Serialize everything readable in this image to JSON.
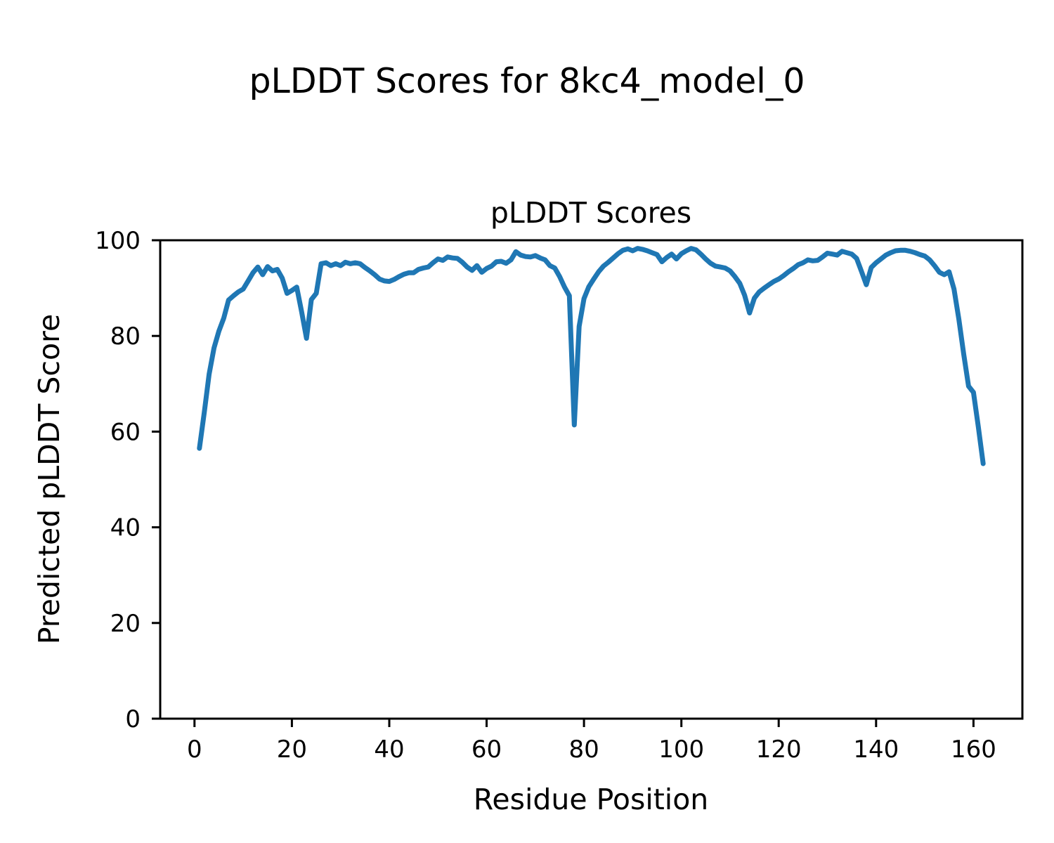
{
  "chart_data": {
    "type": "line",
    "title": "pLDDT Scores for 8kc4_model_0",
    "axes_title": "pLDDT Scores",
    "xlabel": "Residue Position",
    "ylabel": "Predicted pLDDT Score",
    "series_name": "pLDDT",
    "x_start": 1,
    "x_step": 1,
    "xlim": [
      -7.05,
      170.05
    ],
    "ylim": [
      0,
      100
    ],
    "xticks": [
      0,
      20,
      40,
      60,
      80,
      100,
      120,
      140,
      160
    ],
    "yticks": [
      0,
      20,
      40,
      60,
      80,
      100
    ],
    "grid": false,
    "legend": false,
    "line_color": "#1f77b4",
    "line_width": 7,
    "values": [
      56.5,
      64.0,
      72.0,
      77.5,
      81.0,
      83.7,
      87.5,
      88.4,
      89.2,
      89.8,
      91.5,
      93.2,
      94.4,
      92.8,
      94.5,
      93.6,
      93.9,
      92.1,
      88.9,
      89.5,
      90.2,
      85.0,
      79.5,
      87.6,
      88.9,
      95.1,
      95.3,
      94.7,
      95.1,
      94.7,
      95.4,
      95.1,
      95.3,
      95.1,
      94.3,
      93.6,
      92.8,
      91.9,
      91.5,
      91.4,
      91.8,
      92.4,
      92.9,
      93.2,
      93.2,
      93.9,
      94.2,
      94.4,
      95.3,
      96.1,
      95.8,
      96.5,
      96.3,
      96.2,
      95.4,
      94.4,
      93.7,
      94.7,
      93.3,
      94.1,
      94.6,
      95.5,
      95.6,
      95.2,
      95.9,
      97.6,
      96.9,
      96.6,
      96.5,
      96.8,
      96.3,
      95.9,
      94.7,
      94.2,
      92.4,
      90.2,
      88.4,
      61.4,
      82.0,
      87.8,
      90.3,
      91.9,
      93.4,
      94.6,
      95.4,
      96.3,
      97.2,
      97.9,
      98.2,
      97.8,
      98.3,
      98.1,
      97.8,
      97.4,
      97.0,
      95.5,
      96.4,
      97.1,
      96.1,
      97.2,
      97.8,
      98.3,
      98.0,
      97.1,
      96.1,
      95.2,
      94.6,
      94.4,
      94.2,
      93.6,
      92.4,
      91.0,
      88.5,
      84.8,
      87.9,
      89.2,
      90.0,
      90.7,
      91.4,
      91.9,
      92.6,
      93.4,
      94.1,
      94.9,
      95.3,
      95.9,
      95.7,
      95.8,
      96.5,
      97.3,
      97.1,
      96.9,
      97.7,
      97.4,
      97.1,
      96.2,
      93.5,
      90.7,
      94.3,
      95.3,
      96.1,
      96.9,
      97.4,
      97.8,
      97.9,
      97.9,
      97.7,
      97.4,
      97.0,
      96.7,
      95.9,
      94.7,
      93.3,
      92.8,
      93.4,
      89.8,
      83.5,
      76.2,
      69.5,
      68.2,
      61.0,
      53.3
    ]
  }
}
